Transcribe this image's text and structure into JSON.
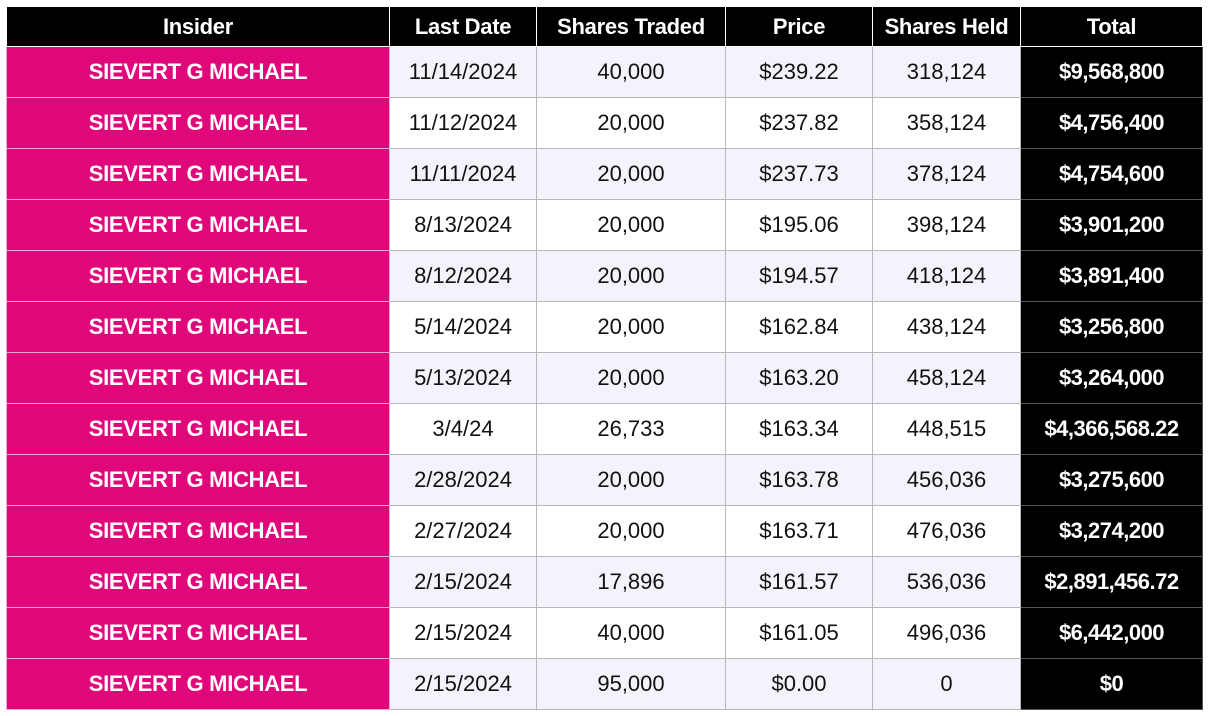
{
  "table": {
    "headers": [
      "Insider",
      "Last Date",
      "Shares Traded",
      "Price",
      "Shares Held",
      "Total"
    ],
    "rows": [
      {
        "insider": "SIEVERT G MICHAEL",
        "last_date": "11/14/2024",
        "shares_traded": "40,000",
        "price": "$239.22",
        "shares_held": "318,124",
        "total": "$9,568,800"
      },
      {
        "insider": "SIEVERT G MICHAEL",
        "last_date": "11/12/2024",
        "shares_traded": "20,000",
        "price": "$237.82",
        "shares_held": "358,124",
        "total": "$4,756,400"
      },
      {
        "insider": "SIEVERT G MICHAEL",
        "last_date": "11/11/2024",
        "shares_traded": "20,000",
        "price": "$237.73",
        "shares_held": "378,124",
        "total": "$4,754,600"
      },
      {
        "insider": "SIEVERT G MICHAEL",
        "last_date": "8/13/2024",
        "shares_traded": "20,000",
        "price": "$195.06",
        "shares_held": "398,124",
        "total": "$3,901,200"
      },
      {
        "insider": "SIEVERT G MICHAEL",
        "last_date": "8/12/2024",
        "shares_traded": "20,000",
        "price": "$194.57",
        "shares_held": "418,124",
        "total": "$3,891,400"
      },
      {
        "insider": "SIEVERT G MICHAEL",
        "last_date": "5/14/2024",
        "shares_traded": "20,000",
        "price": "$162.84",
        "shares_held": "438,124",
        "total": "$3,256,800"
      },
      {
        "insider": "SIEVERT G MICHAEL",
        "last_date": "5/13/2024",
        "shares_traded": "20,000",
        "price": "$163.20",
        "shares_held": "458,124",
        "total": "$3,264,000"
      },
      {
        "insider": "SIEVERT G MICHAEL",
        "last_date": "3/4/24",
        "shares_traded": "26,733",
        "price": "$163.34",
        "shares_held": "448,515",
        "total": "$4,366,568.22"
      },
      {
        "insider": "SIEVERT G MICHAEL",
        "last_date": "2/28/2024",
        "shares_traded": "20,000",
        "price": "$163.78",
        "shares_held": "456,036",
        "total": "$3,275,600"
      },
      {
        "insider": "SIEVERT G MICHAEL",
        "last_date": "2/27/2024",
        "shares_traded": "20,000",
        "price": "$163.71",
        "shares_held": "476,036",
        "total": "$3,274,200"
      },
      {
        "insider": "SIEVERT G MICHAEL",
        "last_date": "2/15/2024",
        "shares_traded": "17,896",
        "price": "$161.57",
        "shares_held": "536,036",
        "total": "$2,891,456.72"
      },
      {
        "insider": "SIEVERT G MICHAEL",
        "last_date": "2/15/2024",
        "shares_traded": "40,000",
        "price": "$161.05",
        "shares_held": "496,036",
        "total": "$6,442,000"
      },
      {
        "insider": "SIEVERT G MICHAEL",
        "last_date": "2/15/2024",
        "shares_traded": "95,000",
        "price": "$0.00",
        "shares_held": "0",
        "total": "$0"
      }
    ]
  },
  "colors": {
    "insider_bg": "#e0077a",
    "header_bg": "#000000",
    "total_bg": "#000000",
    "stripe_bg": "#f3f3fb"
  }
}
